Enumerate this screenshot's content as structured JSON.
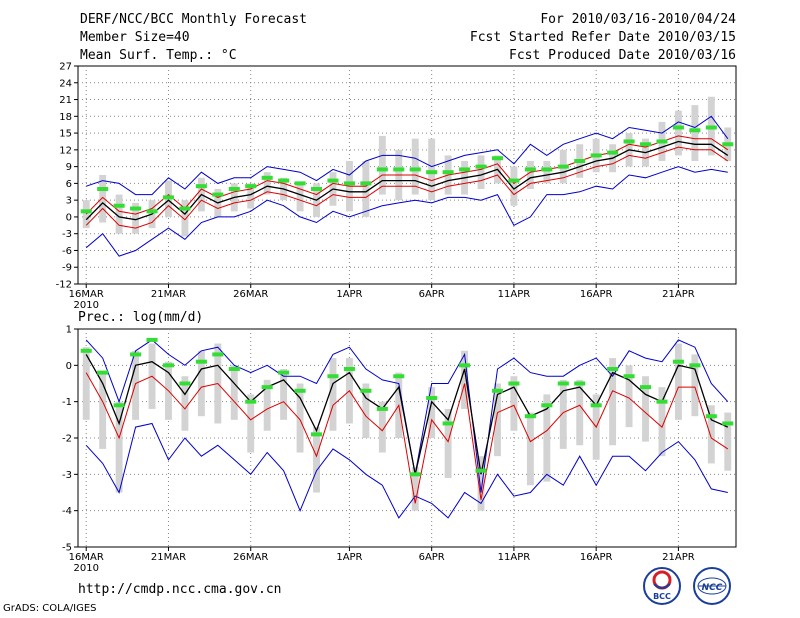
{
  "header": {
    "title": "DERF/NCC/BCC Monthly Forecast",
    "member_size": "Member Size=40",
    "variable": "Mean Surf. Temp.: °C",
    "period": "For 2010/03/16-2010/04/24",
    "refer_date": "Fcst Started Refer Date 2010/03/15",
    "produced_date": "Fcst Produced Date 2010/03/16"
  },
  "precip_label": "Prec.: log(mm/d)",
  "footer": {
    "url": "http://cmdp.ncc.cma.gov.cn",
    "credit": "GrADS: COLA/IGES",
    "logo1_text": "BCC",
    "logo2_text": "NCC"
  },
  "colors": {
    "mean": "#000000",
    "median": "#dd0000",
    "envelope": "#0000cc",
    "box": "#d3d3d3",
    "marker": "#33dd33"
  },
  "chart_data": [
    {
      "type": "line",
      "title": "Mean Surf. Temp.: °C",
      "x_start": "2010-03-16",
      "n_days": 40,
      "xlim": [
        0,
        40
      ],
      "ylim": [
        -12,
        27
      ],
      "y_ticks": [
        -12,
        -9,
        -6,
        -3,
        0,
        3,
        6,
        9,
        12,
        15,
        18,
        21,
        24,
        27
      ],
      "x_ticks": [
        {
          "day": 0,
          "label": "16MAR",
          "sub": "2010"
        },
        {
          "day": 5,
          "label": "21MAR"
        },
        {
          "day": 10,
          "label": "26MAR"
        },
        {
          "day": 16,
          "label": "1APR"
        },
        {
          "day": 21,
          "label": "6APR"
        },
        {
          "day": 26,
          "label": "11APR"
        },
        {
          "day": 31,
          "label": "16APR"
        },
        {
          "day": 36,
          "label": "21APR"
        }
      ],
      "series": [
        {
          "name": "max",
          "values": [
            5.5,
            6.5,
            6,
            4,
            4,
            7,
            5,
            8,
            6,
            7,
            7,
            9,
            8.5,
            8,
            6.5,
            8.5,
            7.5,
            10,
            11,
            11,
            10.5,
            9,
            10,
            11,
            11.5,
            12,
            9.5,
            13,
            11,
            13,
            14,
            15,
            14,
            16,
            15.5,
            15,
            17,
            16,
            18,
            14
          ]
        },
        {
          "name": "min",
          "values": [
            -5.5,
            -3,
            -7,
            -6,
            -4,
            -2,
            -4,
            -1,
            0,
            0,
            1,
            3,
            2,
            0,
            -1,
            1,
            0,
            1,
            2,
            2.5,
            3,
            2.5,
            3.5,
            3.5,
            3,
            4,
            -1.5,
            0,
            4,
            4,
            4.5,
            5.5,
            5,
            7.5,
            7,
            8,
            9,
            8,
            8.5,
            8
          ]
        },
        {
          "name": "mean",
          "values": [
            -0.5,
            2.5,
            0,
            -0.5,
            0.5,
            3,
            0.5,
            4,
            2.5,
            3.5,
            4,
            5.5,
            5,
            4,
            3,
            5,
            4.5,
            4.5,
            6.5,
            6.5,
            6.5,
            5.5,
            6.5,
            7,
            7.5,
            8.5,
            5,
            7,
            7.5,
            8,
            9,
            10,
            10.5,
            12,
            11.5,
            12.5,
            13.5,
            13,
            13,
            11
          ]
        },
        {
          "name": "median",
          "values": [
            -1.5,
            1.5,
            -1.5,
            -2,
            -1,
            2,
            -0.5,
            3,
            1.5,
            2.5,
            3,
            4.5,
            4,
            3,
            2,
            4,
            3.5,
            3.5,
            5.5,
            5.5,
            5.5,
            4.5,
            5.5,
            6,
            6.5,
            7.5,
            4,
            6,
            6.5,
            7,
            8,
            9,
            9.5,
            11,
            10.5,
            11.5,
            12.5,
            12,
            12,
            10
          ]
        },
        {
          "name": "upper",
          "values": [
            0.5,
            3.5,
            1,
            0.5,
            1.5,
            4,
            1.5,
            5,
            3.5,
            4.5,
            5,
            6.5,
            6,
            5,
            4,
            6,
            5.5,
            5.5,
            7.5,
            7.5,
            7.5,
            6.5,
            7.5,
            8,
            8.5,
            9.5,
            6,
            8,
            8.5,
            9,
            10,
            11,
            11.5,
            13,
            12.5,
            13.5,
            14.5,
            14,
            14,
            12
          ]
        }
      ],
      "boxes": [
        {
          "lo": -2,
          "hi": 3
        },
        {
          "lo": -1,
          "hi": 7.5
        },
        {
          "lo": -3,
          "hi": 4
        },
        {
          "lo": -3,
          "hi": 2.5
        },
        {
          "lo": -2,
          "hi": 3
        },
        {
          "lo": 0,
          "hi": 6.5
        },
        {
          "lo": -3.5,
          "hi": 3
        },
        {
          "lo": 1,
          "hi": 7
        },
        {
          "lo": 0,
          "hi": 5
        },
        {
          "lo": 1,
          "hi": 6
        },
        {
          "lo": 1.5,
          "hi": 6
        },
        {
          "lo": 4,
          "hi": 8
        },
        {
          "lo": 3,
          "hi": 7
        },
        {
          "lo": 1,
          "hi": 6
        },
        {
          "lo": 0,
          "hi": 6
        },
        {
          "lo": 2,
          "hi": 8
        },
        {
          "lo": 1,
          "hi": 10
        },
        {
          "lo": 0,
          "hi": 10
        },
        {
          "lo": 4,
          "hi": 14.5
        },
        {
          "lo": 3,
          "hi": 12
        },
        {
          "lo": 4,
          "hi": 14
        },
        {
          "lo": 3,
          "hi": 14
        },
        {
          "lo": 4,
          "hi": 11
        },
        {
          "lo": 4,
          "hi": 10
        },
        {
          "lo": 5,
          "hi": 11
        },
        {
          "lo": 6,
          "hi": 11
        },
        {
          "lo": 2,
          "hi": 9
        },
        {
          "lo": 5,
          "hi": 10
        },
        {
          "lo": 6,
          "hi": 10
        },
        {
          "lo": 6,
          "hi": 12
        },
        {
          "lo": 7,
          "hi": 13
        },
        {
          "lo": 8,
          "hi": 14
        },
        {
          "lo": 8,
          "hi": 13
        },
        {
          "lo": 9,
          "hi": 15
        },
        {
          "lo": 9,
          "hi": 14
        },
        {
          "lo": 10,
          "hi": 17
        },
        {
          "lo": 11,
          "hi": 19
        },
        {
          "lo": 10,
          "hi": 20
        },
        {
          "lo": 11,
          "hi": 21.5
        },
        {
          "lo": 10,
          "hi": 16
        }
      ],
      "markers": [
        1,
        5,
        2,
        1.5,
        1,
        3.5,
        1.5,
        5.5,
        4,
        5,
        5.5,
        7,
        6.5,
        6,
        5,
        6.5,
        6,
        6,
        8.5,
        8.5,
        8.5,
        8,
        8,
        8.5,
        9,
        10.5,
        6.5,
        8.5,
        8.5,
        9,
        10,
        11,
        11.5,
        13.5,
        13,
        13.5,
        16,
        15.5,
        16,
        13
      ]
    },
    {
      "type": "line",
      "title": "Prec.: log(mm/d)",
      "x_start": "2010-03-16",
      "n_days": 40,
      "xlim": [
        0,
        40
      ],
      "ylim": [
        -5,
        1
      ],
      "y_ticks": [
        -5,
        -4,
        -3,
        -2,
        -1,
        0,
        1
      ],
      "x_ticks": [
        {
          "day": 0,
          "label": "16MAR",
          "sub": "2010"
        },
        {
          "day": 5,
          "label": "21MAR"
        },
        {
          "day": 10,
          "label": "26MAR"
        },
        {
          "day": 16,
          "label": "1APR"
        },
        {
          "day": 21,
          "label": "6APR"
        },
        {
          "day": 26,
          "label": "11APR"
        },
        {
          "day": 31,
          "label": "16APR"
        },
        {
          "day": 36,
          "label": "21APR"
        }
      ],
      "series": [
        {
          "name": "max",
          "values": [
            0.7,
            0.2,
            -1,
            0.4,
            0.7,
            0.3,
            0,
            0.4,
            0.5,
            0,
            -0.2,
            0,
            -0.3,
            -0.3,
            -0.5,
            0.3,
            0.5,
            -0.1,
            -0.4,
            -0.5,
            -3,
            -0.5,
            -0.5,
            0.3,
            -3.5,
            -0.1,
            0.2,
            -0.2,
            -0.3,
            -0.3,
            0,
            0.2,
            -0.3,
            0.4,
            0.2,
            0.1,
            0.7,
            0.5,
            -0.5,
            -1
          ]
        },
        {
          "name": "min",
          "values": [
            -2.2,
            -2.7,
            -3.5,
            -1.7,
            -1.6,
            -2.6,
            -2,
            -2.5,
            -2.2,
            -2.6,
            -3,
            -2.4,
            -2.9,
            -4,
            -2.9,
            -2.3,
            -2.6,
            -3,
            -3.3,
            -4.2,
            -3.6,
            -3.8,
            -4.2,
            -3.5,
            -3.8,
            -3,
            -3.6,
            -3.5,
            -3,
            -3.3,
            -2.5,
            -3.3,
            -2.5,
            -2.5,
            -2.9,
            -2.4,
            -2.1,
            -2.6,
            -3.4,
            -3.5
          ]
        },
        {
          "name": "mean",
          "values": [
            0.3,
            -0.5,
            -1.6,
            0,
            0.1,
            -0.2,
            -0.8,
            -0.1,
            0,
            -0.5,
            -1,
            -0.6,
            -0.4,
            -0.9,
            -1.8,
            -0.5,
            -0.2,
            -0.9,
            -1.2,
            -0.6,
            -3,
            -1,
            -1.5,
            -0.1,
            -3,
            -0.8,
            -0.6,
            -1.4,
            -1.2,
            -0.7,
            -0.6,
            -1.1,
            -0.2,
            -0.4,
            -0.8,
            -1,
            0,
            -0.1,
            -1.5,
            -1.7
          ]
        },
        {
          "name": "median",
          "values": [
            -0.2,
            -1,
            -2,
            -0.5,
            -0.3,
            -0.7,
            -1.2,
            -0.6,
            -0.5,
            -1,
            -1.5,
            -1.2,
            -1,
            -1.5,
            -2.5,
            -1.1,
            -0.7,
            -1.4,
            -1.8,
            -1.1,
            -3.8,
            -1.5,
            -2.1,
            -0.5,
            -3.7,
            -1.3,
            -1.1,
            -2.1,
            -1.8,
            -1.3,
            -1.1,
            -1.7,
            -0.7,
            -0.9,
            -1.3,
            -1.7,
            -0.6,
            -0.6,
            -2,
            -2.3
          ]
        }
      ],
      "boxes": [
        {
          "lo": -1.5,
          "hi": 0.5
        },
        {
          "lo": -2.3,
          "hi": -0.2
        },
        {
          "lo": -3.5,
          "hi": -1
        },
        {
          "lo": -1.5,
          "hi": 0.4
        },
        {
          "lo": -1.2,
          "hi": 0.6
        },
        {
          "lo": -1.5,
          "hi": 0.1
        },
        {
          "lo": -1.8,
          "hi": -0.3
        },
        {
          "lo": -1.4,
          "hi": 0.4
        },
        {
          "lo": -1.6,
          "hi": 0.6
        },
        {
          "lo": -1.5,
          "hi": 0
        },
        {
          "lo": -2.4,
          "hi": -0.8
        },
        {
          "lo": -1.8,
          "hi": -0.4
        },
        {
          "lo": -1.5,
          "hi": -0.1
        },
        {
          "lo": -2.4,
          "hi": -0.5
        },
        {
          "lo": -3.5,
          "hi": -1.7
        },
        {
          "lo": -1.8,
          "hi": 0.2
        },
        {
          "lo": -1.6,
          "hi": 0.2
        },
        {
          "lo": -2,
          "hi": -0.5
        },
        {
          "lo": -2.4,
          "hi": -1
        },
        {
          "lo": -2,
          "hi": -0.2
        },
        {
          "lo": -4,
          "hi": -2.8
        },
        {
          "lo": -2,
          "hi": -0.6
        },
        {
          "lo": -3.1,
          "hi": -1.2
        },
        {
          "lo": -1.2,
          "hi": 0.4
        },
        {
          "lo": -4,
          "hi": -2.5
        },
        {
          "lo": -2.5,
          "hi": -0.5
        },
        {
          "lo": -1.8,
          "hi": -0.3
        },
        {
          "lo": -3.3,
          "hi": -1.3
        },
        {
          "lo": -3.2,
          "hi": -0.8
        },
        {
          "lo": -2.3,
          "hi": -0.4
        },
        {
          "lo": -2.2,
          "hi": -0.4
        },
        {
          "lo": -2.6,
          "hi": -0.8
        },
        {
          "lo": -2.2,
          "hi": 0.2
        },
        {
          "lo": -1.7,
          "hi": 0
        },
        {
          "lo": -2.1,
          "hi": -0.3
        },
        {
          "lo": -2.5,
          "hi": -0.6
        },
        {
          "lo": -1.5,
          "hi": 0.6
        },
        {
          "lo": -1.4,
          "hi": 0.3
        },
        {
          "lo": -2.7,
          "hi": -1.1
        },
        {
          "lo": -2.9,
          "hi": -1.3
        }
      ],
      "markers": [
        0.4,
        -0.2,
        -1.1,
        0.3,
        0.7,
        0,
        -0.5,
        0.1,
        0.3,
        -0.1,
        -1,
        -0.6,
        -0.2,
        -0.7,
        -1.9,
        -0.3,
        -0.1,
        -0.7,
        -1.2,
        -0.3,
        -3,
        -0.9,
        -1.6,
        0,
        -2.9,
        -0.7,
        -0.5,
        -1.4,
        -1.1,
        -0.5,
        -0.5,
        -1.1,
        -0.1,
        -0.3,
        -0.6,
        -1,
        0.1,
        0,
        -1.4,
        -1.6
      ]
    }
  ]
}
